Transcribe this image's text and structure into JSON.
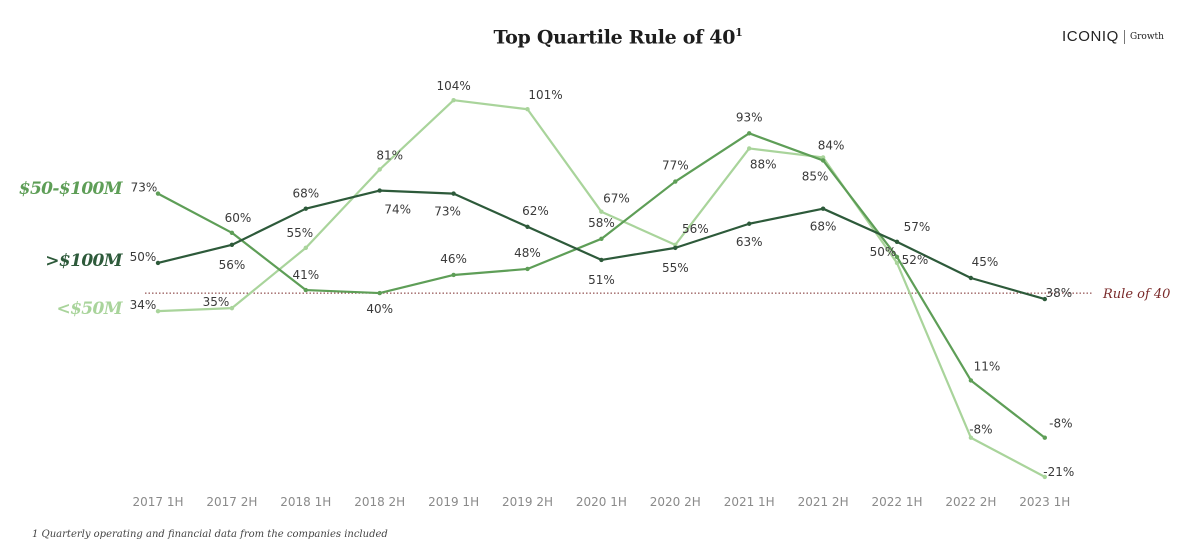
{
  "header": {
    "title": "Top Quartile Rule of 40",
    "title_superscript": "1",
    "brand_name": "ICONIQ",
    "brand_sub": "Growth"
  },
  "footnote": "1 Quarterly operating and financial data from the companies included",
  "chart_data": {
    "type": "line",
    "title": "Top Quartile Rule of 40",
    "xlabel": "",
    "ylabel": "",
    "ylim": [
      -28,
      118
    ],
    "grid": false,
    "legend": "left-side series labels",
    "categories": [
      "2017 1H",
      "2017 2H",
      "2018 1H",
      "2018 2H",
      "2019 1H",
      "2019 2H",
      "2020 1H",
      "2020 2H",
      "2021 1H",
      "2021 2H",
      "2022 1H",
      "2022 2H",
      "2023 1H"
    ],
    "series": [
      {
        "name": "$50-$100M",
        "color": "#5e9e57",
        "values": [
          73,
          60,
          41,
          40,
          46,
          48,
          58,
          77,
          93,
          84,
          52,
          11,
          -8
        ],
        "labels": [
          "73%",
          "60%",
          "41%",
          "40%",
          "46%",
          "48%",
          "58%",
          "77%",
          "93%",
          "84%",
          "52%",
          "11%",
          "-8%"
        ]
      },
      {
        "name": ">$100M",
        "color": "#2d5a3a",
        "values": [
          50,
          56,
          68,
          74,
          73,
          62,
          51,
          55,
          63,
          68,
          57,
          45,
          38
        ],
        "labels": [
          "50%",
          "56%",
          "68%",
          "74%",
          "73%",
          "62%",
          "51%",
          "55%",
          "63%",
          "68%",
          "57%",
          "45%",
          "38%"
        ]
      },
      {
        "name": "<$50M",
        "color": "#a9d49b",
        "values": [
          34,
          35,
          55,
          81,
          104,
          101,
          67,
          56,
          88,
          85,
          50,
          -8,
          -21
        ],
        "labels": [
          "34%",
          "35%",
          "55%",
          "81%",
          "104%",
          "101%",
          "67%",
          "56%",
          "88%",
          "85%",
          "50%",
          "-8%",
          "-21%"
        ]
      }
    ],
    "reference_line": {
      "value": 40,
      "label": "Rule of 40",
      "color": "#7a2a2a"
    }
  }
}
